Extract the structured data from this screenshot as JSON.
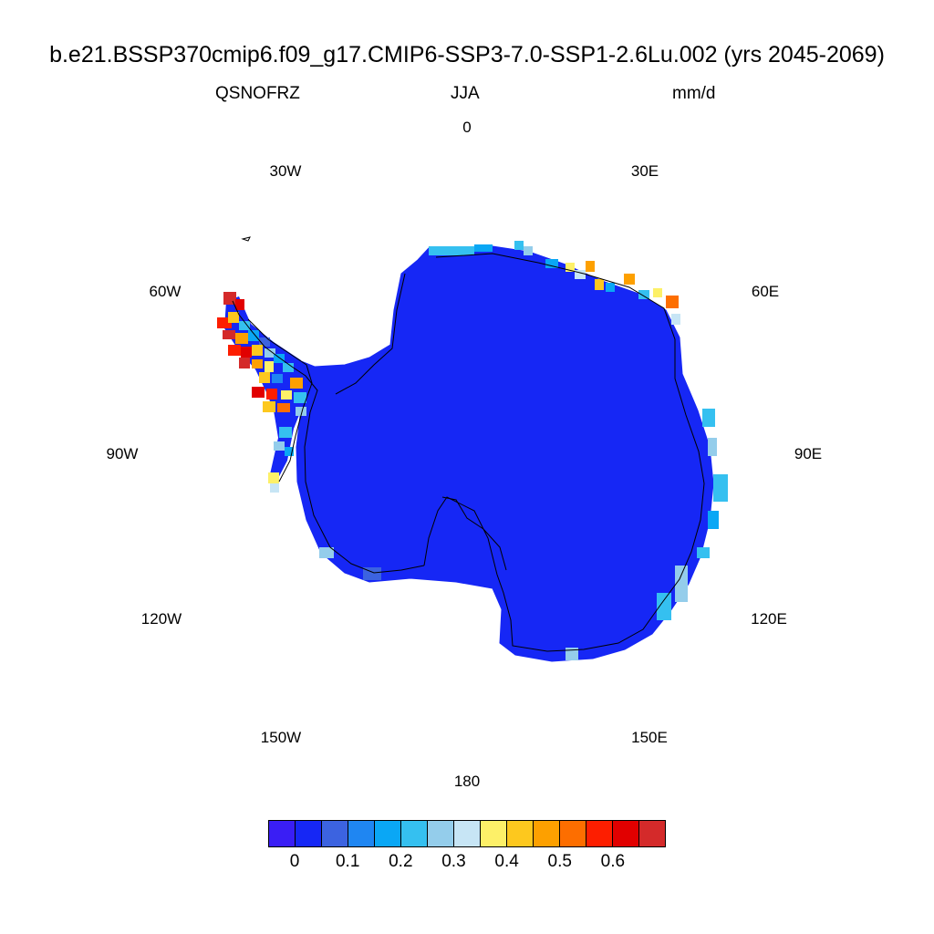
{
  "title": "b.e21.BSSP370cmip6.f09_g17.CMIP6-SSP3-7.0-SSP1-2.6Lu.002 (yrs 2045-2069)",
  "variable": "QSNOFRZ",
  "season": "JJA",
  "units": "mm/d",
  "longitude_labels": {
    "lon_0": "0",
    "lon_30e": "30E",
    "lon_60e": "60E",
    "lon_90e": "90E",
    "lon_120e": "120E",
    "lon_150e": "150E",
    "lon_180": "180",
    "lon_150w": "150W",
    "lon_120w": "120W",
    "lon_90w": "90W",
    "lon_60w": "60W",
    "lon_30w": "30W"
  },
  "colors": {
    "ice_sheet": "#1627f5",
    "coastline": "#000000"
  },
  "colorbar": {
    "colors": [
      "#3a1ef5",
      "#1627f5",
      "#3c63e0",
      "#1f86f2",
      "#0aa7f5",
      "#35c0f0",
      "#94cdeb",
      "#c7e5f5",
      "#fdf068",
      "#fdc81e",
      "#fda000",
      "#fd6e00",
      "#fd1e00",
      "#e10000",
      "#d42a2a"
    ],
    "tick_labels": [
      "0",
      "0.1",
      "0.2",
      "0.3",
      "0.4",
      "0.5",
      "0.6"
    ]
  }
}
